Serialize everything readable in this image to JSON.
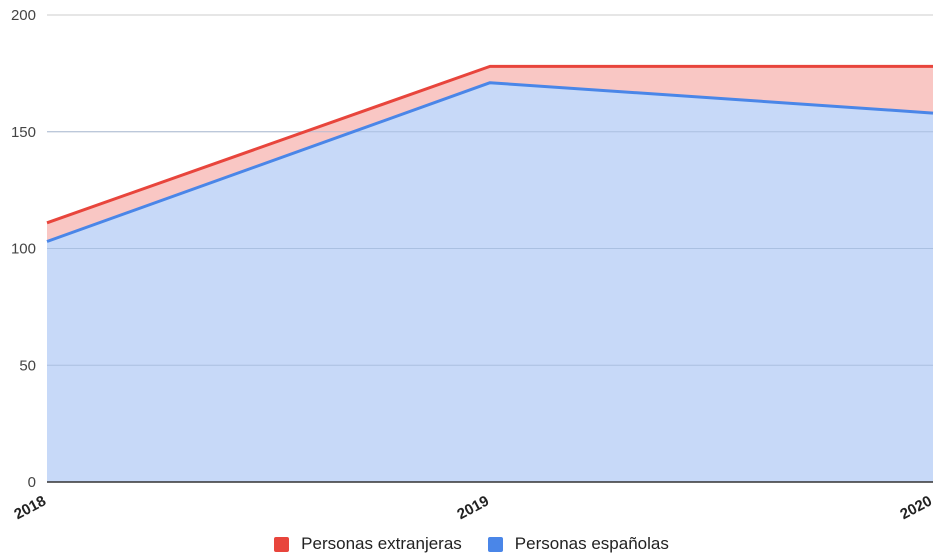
{
  "chart_data": {
    "type": "area",
    "stacked": true,
    "categories": [
      "2018",
      "2019",
      "2020"
    ],
    "ylim": [
      0,
      200
    ],
    "yticks": [
      0,
      50,
      100,
      150,
      200
    ],
    "grid": true,
    "legend_position": "bottom",
    "series": [
      {
        "name": "Personas españolas",
        "values": [
          103,
          171,
          158
        ],
        "color": "#4a86e8",
        "fill": "#c7d9f8"
      },
      {
        "name": "Personas extranjeras",
        "values": [
          8,
          7,
          20
        ],
        "color": "#e8453c",
        "fill": "#f9c7c4"
      }
    ]
  },
  "legend": {
    "items": [
      {
        "label": "Personas extranjeras",
        "color": "#e8453c"
      },
      {
        "label": "Personas españolas",
        "color": "#4a86e8"
      }
    ]
  }
}
